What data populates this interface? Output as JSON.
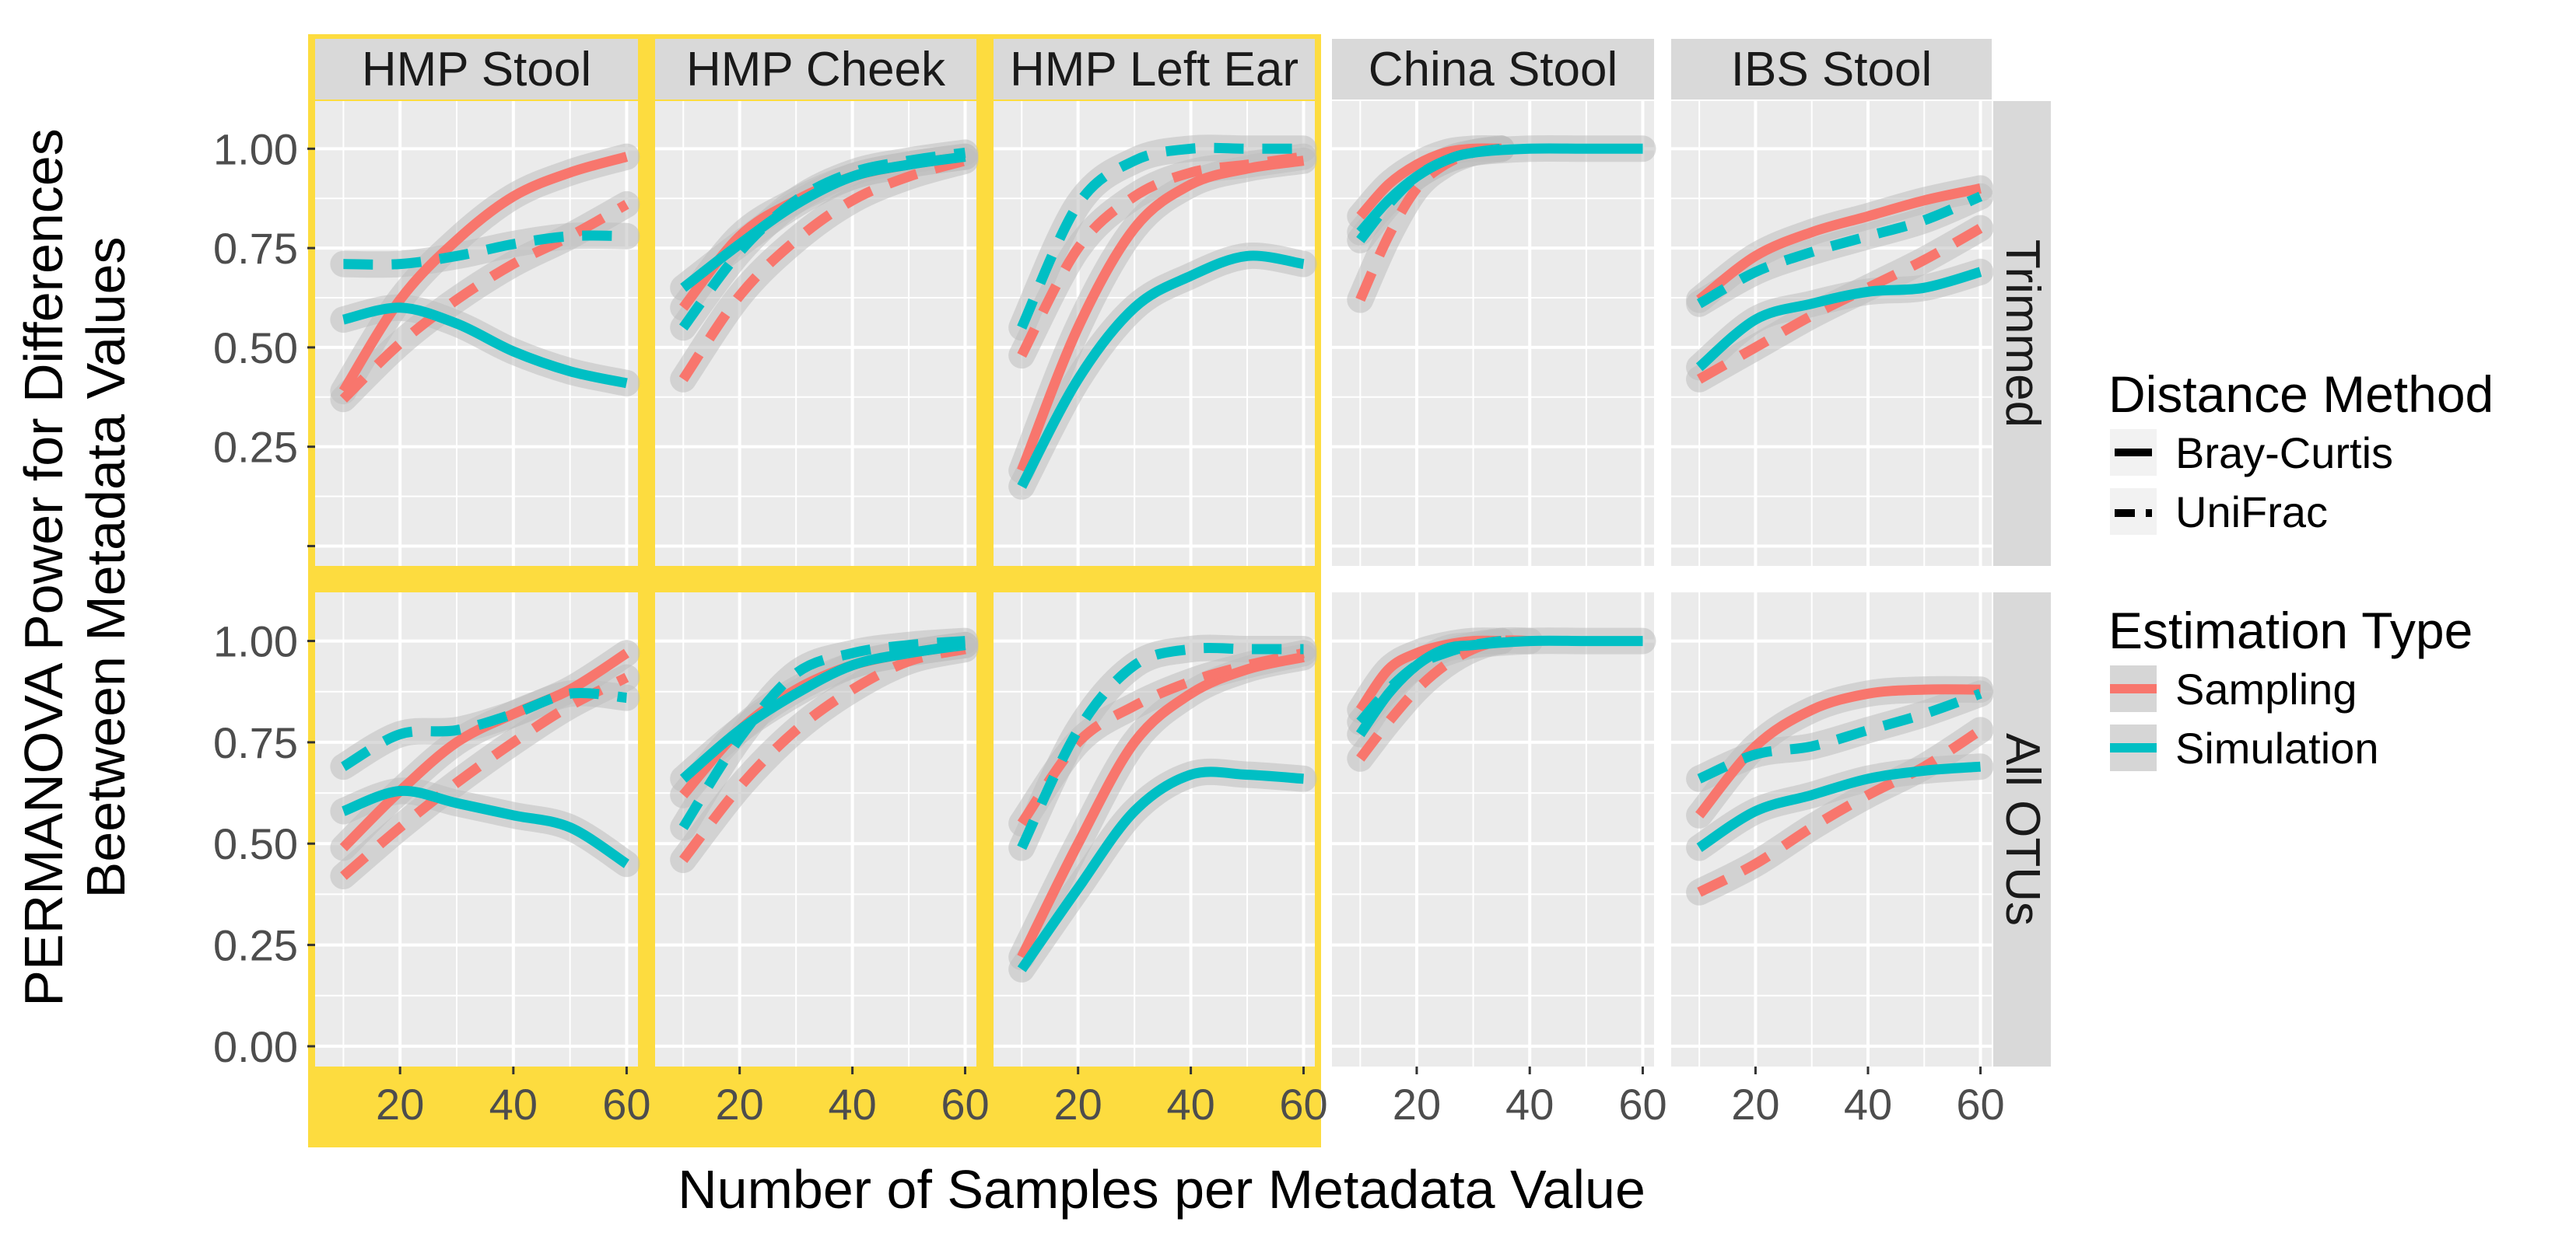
{
  "chart_data": {
    "type": "line",
    "ylabel_line1": "PERMANOVA Power for Differences",
    "ylabel_line2": "Beetween Metadata Values",
    "xlabel": "Number of Samples per Metadata Value",
    "xlim": [
      5,
      62
    ],
    "ylim": [
      -0.05,
      1.12
    ],
    "xticks": [
      20,
      40,
      60
    ],
    "yticks": [
      0.0,
      0.25,
      0.5,
      0.75,
      1.0
    ],
    "ytick_labels": [
      "0.00",
      "0.25",
      "0.50",
      "0.75",
      "1.00"
    ],
    "columns": [
      "HMP Stool",
      "HMP Cheek",
      "HMP Left Ear",
      "China Stool",
      "IBS Stool"
    ],
    "rows": [
      "Trimmed",
      "All OTUs"
    ],
    "highlighted_columns": [
      "HMP Stool",
      "HMP Cheek",
      "HMP Left Ear"
    ],
    "highlight_color": "#FDDC3F",
    "colors": {
      "Sampling": "#F8766D",
      "Simulation": "#00BFC4",
      "band": "#BDBDBD",
      "panel_bg": "#EBEBEB",
      "strip_bg": "#D9D9D9"
    },
    "legend": {
      "distance_title": "Distance Method",
      "distance_items": [
        "Bray-Curtis",
        "UniFrac"
      ],
      "estimation_title": "Estimation Type",
      "estimation_items": [
        "Sampling",
        "Simulation"
      ]
    },
    "series": [
      {
        "panel": "HMP Stool|Trimmed",
        "estimation": "Sampling",
        "method": "Bray-Curtis",
        "x": [
          10,
          20,
          30,
          40,
          50,
          60
        ],
        "y": [
          0.39,
          0.62,
          0.77,
          0.88,
          0.94,
          0.98
        ]
      },
      {
        "panel": "HMP Stool|Trimmed",
        "estimation": "Sampling",
        "method": "UniFrac",
        "x": [
          10,
          20,
          30,
          40,
          50,
          60
        ],
        "y": [
          0.37,
          0.51,
          0.62,
          0.71,
          0.78,
          0.86
        ]
      },
      {
        "panel": "HMP Stool|Trimmed",
        "estimation": "Simulation",
        "method": "Bray-Curtis",
        "x": [
          10,
          20,
          30,
          40,
          50,
          60
        ],
        "y": [
          0.57,
          0.6,
          0.56,
          0.49,
          0.44,
          0.41
        ]
      },
      {
        "panel": "HMP Stool|Trimmed",
        "estimation": "Simulation",
        "method": "UniFrac",
        "x": [
          10,
          20,
          30,
          40,
          50,
          60
        ],
        "y": [
          0.71,
          0.71,
          0.73,
          0.76,
          0.78,
          0.78
        ]
      },
      {
        "panel": "HMP Cheek|Trimmed",
        "estimation": "Sampling",
        "method": "Bray-Curtis",
        "x": [
          10,
          20,
          30,
          40,
          50,
          60
        ],
        "y": [
          0.6,
          0.78,
          0.87,
          0.93,
          0.96,
          0.98
        ]
      },
      {
        "panel": "HMP Cheek|Trimmed",
        "estimation": "Sampling",
        "method": "UniFrac",
        "x": [
          10,
          20,
          30,
          40,
          50,
          60
        ],
        "y": [
          0.42,
          0.63,
          0.77,
          0.87,
          0.93,
          0.97
        ]
      },
      {
        "panel": "HMP Cheek|Trimmed",
        "estimation": "Simulation",
        "method": "Bray-Curtis",
        "x": [
          10,
          20,
          30,
          40,
          50,
          60
        ],
        "y": [
          0.65,
          0.76,
          0.86,
          0.93,
          0.96,
          0.98
        ]
      },
      {
        "panel": "HMP Cheek|Trimmed",
        "estimation": "Simulation",
        "method": "UniFrac",
        "x": [
          10,
          20,
          30,
          40,
          50,
          60
        ],
        "y": [
          0.55,
          0.74,
          0.87,
          0.94,
          0.97,
          0.99
        ]
      },
      {
        "panel": "HMP Left Ear|Trimmed",
        "estimation": "Sampling",
        "method": "Bray-Curtis",
        "x": [
          10,
          20,
          30,
          40,
          50,
          60
        ],
        "y": [
          0.19,
          0.55,
          0.8,
          0.91,
          0.95,
          0.97
        ]
      },
      {
        "panel": "HMP Left Ear|Trimmed",
        "estimation": "Sampling",
        "method": "UniFrac",
        "x": [
          10,
          20,
          30,
          40,
          50,
          60
        ],
        "y": [
          0.48,
          0.75,
          0.88,
          0.94,
          0.96,
          0.98
        ]
      },
      {
        "panel": "HMP Left Ear|Trimmed",
        "estimation": "Simulation",
        "method": "Bray-Curtis",
        "x": [
          10,
          20,
          30,
          40,
          50,
          60
        ],
        "y": [
          0.15,
          0.42,
          0.6,
          0.68,
          0.73,
          0.71
        ]
      },
      {
        "panel": "HMP Left Ear|Trimmed",
        "estimation": "Simulation",
        "method": "UniFrac",
        "x": [
          10,
          20,
          30,
          40,
          50,
          60
        ],
        "y": [
          0.55,
          0.86,
          0.97,
          1.0,
          1.0,
          1.0
        ]
      },
      {
        "panel": "China Stool|Trimmed",
        "estimation": "Sampling",
        "method": "Bray-Curtis",
        "x": [
          10,
          15,
          20,
          25,
          30,
          35
        ],
        "y": [
          0.83,
          0.91,
          0.96,
          0.99,
          1.0,
          1.0
        ]
      },
      {
        "panel": "China Stool|Trimmed",
        "estimation": "Sampling",
        "method": "UniFrac",
        "x": [
          10,
          15,
          20,
          25,
          30,
          35
        ],
        "y": [
          0.62,
          0.78,
          0.9,
          0.96,
          0.99,
          1.0
        ]
      },
      {
        "panel": "China Stool|Trimmed",
        "estimation": "Simulation",
        "method": "Bray-Curtis",
        "x": [
          10,
          15,
          20,
          25,
          30,
          40,
          50,
          60
        ],
        "y": [
          0.79,
          0.87,
          0.93,
          0.97,
          0.99,
          1.0,
          1.0,
          1.0
        ]
      },
      {
        "panel": "China Stool|Trimmed",
        "estimation": "Simulation",
        "method": "UniFrac",
        "x": [
          10,
          15,
          20,
          25,
          30,
          35
        ],
        "y": [
          0.77,
          0.86,
          0.93,
          0.97,
          0.99,
          1.0
        ]
      },
      {
        "panel": "IBS Stool|Trimmed",
        "estimation": "Sampling",
        "method": "Bray-Curtis",
        "x": [
          10,
          20,
          30,
          40,
          50,
          60
        ],
        "y": [
          0.62,
          0.73,
          0.79,
          0.83,
          0.87,
          0.9
        ]
      },
      {
        "panel": "IBS Stool|Trimmed",
        "estimation": "Sampling",
        "method": "UniFrac",
        "x": [
          10,
          20,
          30,
          40,
          50,
          60
        ],
        "y": [
          0.42,
          0.5,
          0.58,
          0.65,
          0.72,
          0.8
        ]
      },
      {
        "panel": "IBS Stool|Trimmed",
        "estimation": "Simulation",
        "method": "Bray-Curtis",
        "x": [
          10,
          20,
          30,
          40,
          50,
          60
        ],
        "y": [
          0.45,
          0.57,
          0.61,
          0.64,
          0.65,
          0.69
        ]
      },
      {
        "panel": "IBS Stool|Trimmed",
        "estimation": "Simulation",
        "method": "UniFrac",
        "x": [
          10,
          20,
          30,
          40,
          50,
          60
        ],
        "y": [
          0.61,
          0.69,
          0.74,
          0.78,
          0.82,
          0.88
        ]
      },
      {
        "panel": "HMP Stool|All OTUs",
        "estimation": "Sampling",
        "method": "Bray-Curtis",
        "x": [
          10,
          20,
          30,
          40,
          50,
          60
        ],
        "y": [
          0.49,
          0.63,
          0.75,
          0.82,
          0.88,
          0.97
        ]
      },
      {
        "panel": "HMP Stool|All OTUs",
        "estimation": "Sampling",
        "method": "UniFrac",
        "x": [
          10,
          20,
          30,
          40,
          50,
          60
        ],
        "y": [
          0.42,
          0.54,
          0.65,
          0.75,
          0.84,
          0.91
        ]
      },
      {
        "panel": "HMP Stool|All OTUs",
        "estimation": "Simulation",
        "method": "Bray-Curtis",
        "x": [
          10,
          20,
          30,
          40,
          50,
          60
        ],
        "y": [
          0.58,
          0.63,
          0.6,
          0.57,
          0.54,
          0.45
        ]
      },
      {
        "panel": "HMP Stool|All OTUs",
        "estimation": "Simulation",
        "method": "UniFrac",
        "x": [
          10,
          20,
          30,
          40,
          50,
          60
        ],
        "y": [
          0.69,
          0.77,
          0.78,
          0.82,
          0.87,
          0.86
        ]
      },
      {
        "panel": "HMP Cheek|All OTUs",
        "estimation": "Sampling",
        "method": "Bray-Curtis",
        "x": [
          10,
          20,
          30,
          40,
          50,
          60
        ],
        "y": [
          0.62,
          0.78,
          0.88,
          0.94,
          0.97,
          0.99
        ]
      },
      {
        "panel": "HMP Cheek|All OTUs",
        "estimation": "Sampling",
        "method": "UniFrac",
        "x": [
          10,
          20,
          30,
          40,
          50,
          60
        ],
        "y": [
          0.46,
          0.64,
          0.78,
          0.88,
          0.95,
          0.98
        ]
      },
      {
        "panel": "HMP Cheek|All OTUs",
        "estimation": "Simulation",
        "method": "Bray-Curtis",
        "x": [
          10,
          20,
          30,
          40,
          50,
          60
        ],
        "y": [
          0.66,
          0.78,
          0.87,
          0.94,
          0.97,
          0.99
        ]
      },
      {
        "panel": "HMP Cheek|All OTUs",
        "estimation": "Simulation",
        "method": "UniFrac",
        "x": [
          10,
          20,
          30,
          40,
          50,
          60
        ],
        "y": [
          0.54,
          0.76,
          0.92,
          0.97,
          0.99,
          1.0
        ]
      },
      {
        "panel": "HMP Left Ear|All OTUs",
        "estimation": "Sampling",
        "method": "Bray-Curtis",
        "x": [
          10,
          20,
          30,
          40,
          50,
          60
        ],
        "y": [
          0.22,
          0.5,
          0.75,
          0.87,
          0.93,
          0.96
        ]
      },
      {
        "panel": "HMP Left Ear|All OTUs",
        "estimation": "Sampling",
        "method": "UniFrac",
        "x": [
          10,
          20,
          30,
          40,
          50,
          60
        ],
        "y": [
          0.55,
          0.75,
          0.84,
          0.9,
          0.94,
          0.97
        ]
      },
      {
        "panel": "HMP Left Ear|All OTUs",
        "estimation": "Simulation",
        "method": "Bray-Curtis",
        "x": [
          10,
          20,
          30,
          40,
          50,
          60
        ],
        "y": [
          0.19,
          0.39,
          0.58,
          0.67,
          0.67,
          0.66
        ]
      },
      {
        "panel": "HMP Left Ear|All OTUs",
        "estimation": "Simulation",
        "method": "UniFrac",
        "x": [
          10,
          20,
          30,
          40,
          50,
          60
        ],
        "y": [
          0.49,
          0.78,
          0.94,
          0.98,
          0.98,
          0.98
        ]
      },
      {
        "panel": "China Stool|All OTUs",
        "estimation": "Sampling",
        "method": "Bray-Curtis",
        "x": [
          10,
          15,
          20,
          25,
          30,
          35
        ],
        "y": [
          0.83,
          0.93,
          0.97,
          0.99,
          1.0,
          1.0
        ]
      },
      {
        "panel": "China Stool|All OTUs",
        "estimation": "Sampling",
        "method": "UniFrac",
        "x": [
          10,
          15,
          20,
          25,
          30,
          35,
          40
        ],
        "y": [
          0.71,
          0.8,
          0.88,
          0.94,
          0.98,
          1.0,
          1.0
        ]
      },
      {
        "panel": "China Stool|All OTUs",
        "estimation": "Simulation",
        "method": "Bray-Curtis",
        "x": [
          10,
          15,
          20,
          25,
          30,
          40,
          50,
          60
        ],
        "y": [
          0.77,
          0.87,
          0.94,
          0.98,
          0.99,
          1.0,
          1.0,
          1.0
        ]
      },
      {
        "panel": "China Stool|All OTUs",
        "estimation": "Simulation",
        "method": "UniFrac",
        "x": [
          10,
          15,
          20,
          25,
          30,
          35
        ],
        "y": [
          0.8,
          0.88,
          0.94,
          0.97,
          0.99,
          1.0
        ]
      },
      {
        "panel": "IBS Stool|All OTUs",
        "estimation": "Sampling",
        "method": "Bray-Curtis",
        "x": [
          10,
          20,
          30,
          40,
          50,
          60
        ],
        "y": [
          0.57,
          0.74,
          0.83,
          0.87,
          0.88,
          0.88
        ]
      },
      {
        "panel": "IBS Stool|All OTUs",
        "estimation": "Sampling",
        "method": "UniFrac",
        "x": [
          10,
          20,
          30,
          40,
          50,
          60
        ],
        "y": [
          0.38,
          0.45,
          0.54,
          0.62,
          0.69,
          0.78
        ]
      },
      {
        "panel": "IBS Stool|All OTUs",
        "estimation": "Simulation",
        "method": "Bray-Curtis",
        "x": [
          10,
          20,
          30,
          40,
          50,
          60
        ],
        "y": [
          0.49,
          0.58,
          0.62,
          0.66,
          0.68,
          0.69
        ]
      },
      {
        "panel": "IBS Stool|All OTUs",
        "estimation": "Simulation",
        "method": "UniFrac",
        "x": [
          10,
          20,
          30,
          40,
          50,
          60
        ],
        "y": [
          0.66,
          0.72,
          0.74,
          0.78,
          0.82,
          0.87
        ]
      }
    ]
  }
}
